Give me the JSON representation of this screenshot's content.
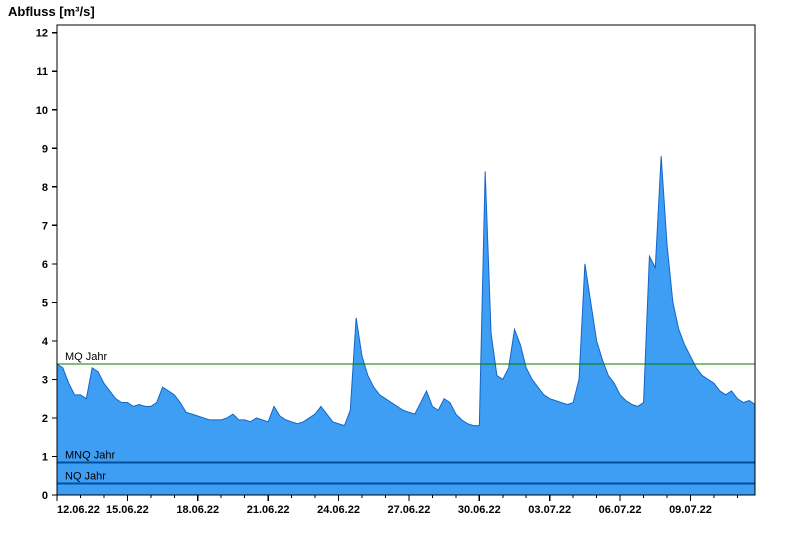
{
  "title": "Abfluss [m³/s]",
  "colors": {
    "background": "#ffffff",
    "axis": "#000000",
    "area_fill": "#3d9ef3",
    "area_stroke": "#1565c8",
    "mq_line": "#007f00",
    "mnq_line": "#00509e",
    "label_text": "#000000"
  },
  "chart_data": {
    "type": "area",
    "title": "Abfluss [m³/s]",
    "xlabel": "",
    "ylabel": "Abfluss [m³/s]",
    "ylim": [
      0,
      12.2
    ],
    "y_ticks": [
      0,
      1,
      2,
      3,
      4,
      5,
      6,
      7,
      8,
      9,
      10,
      11,
      12
    ],
    "x_tick_labels": [
      "12.06.22",
      "15.06.22",
      "18.06.22",
      "21.06.22",
      "24.06.22",
      "27.06.22",
      "30.06.22",
      "03.07.22",
      "06.07.22",
      "09.07.22"
    ],
    "x_tick_days": [
      0,
      3,
      6,
      9,
      12,
      15,
      18,
      21,
      24,
      27
    ],
    "x_range_days": [
      0,
      29.75
    ],
    "start_label": "12.06.22 00:00",
    "sample_interval_hours": 6,
    "grid": false,
    "legend": false,
    "values": [
      3.4,
      3.3,
      2.9,
      2.6,
      2.6,
      2.5,
      3.3,
      3.2,
      2.9,
      2.7,
      2.5,
      2.4,
      2.4,
      2.3,
      2.35,
      2.3,
      2.3,
      2.4,
      2.8,
      2.7,
      2.6,
      2.4,
      2.15,
      2.1,
      2.05,
      2.0,
      1.95,
      1.95,
      1.95,
      2.0,
      2.1,
      1.95,
      1.95,
      1.9,
      2.0,
      1.95,
      1.9,
      2.3,
      2.05,
      1.95,
      1.9,
      1.85,
      1.9,
      2.0,
      2.1,
      2.3,
      2.1,
      1.9,
      1.85,
      1.8,
      2.2,
      4.6,
      3.6,
      3.1,
      2.8,
      2.6,
      2.5,
      2.4,
      2.3,
      2.2,
      2.15,
      2.1,
      2.4,
      2.7,
      2.3,
      2.2,
      2.5,
      2.4,
      2.1,
      1.95,
      1.85,
      1.8,
      1.8,
      8.4,
      4.2,
      3.1,
      3.0,
      3.3,
      4.3,
      3.9,
      3.3,
      3.0,
      2.8,
      2.6,
      2.5,
      2.45,
      2.4,
      2.35,
      2.4,
      3.0,
      6.0,
      5.0,
      4.0,
      3.5,
      3.1,
      2.9,
      2.6,
      2.45,
      2.35,
      2.3,
      2.4,
      6.2,
      5.9,
      8.8,
      6.5,
      5.0,
      4.3,
      3.9,
      3.6,
      3.3,
      3.1,
      3.0,
      2.9,
      2.7,
      2.6,
      2.7,
      2.5,
      2.4,
      2.45,
      2.35
    ],
    "reference_lines": [
      {
        "label": "MQ Jahr",
        "value": 3.4,
        "color_key": "mq_line",
        "width": 1
      },
      {
        "label": "MNQ Jahr",
        "value": 0.85,
        "color_key": "mnq_line",
        "width": 2
      },
      {
        "label": "NQ Jahr",
        "value": 0.3,
        "color_key": "mnq_line",
        "width": 2
      }
    ]
  }
}
